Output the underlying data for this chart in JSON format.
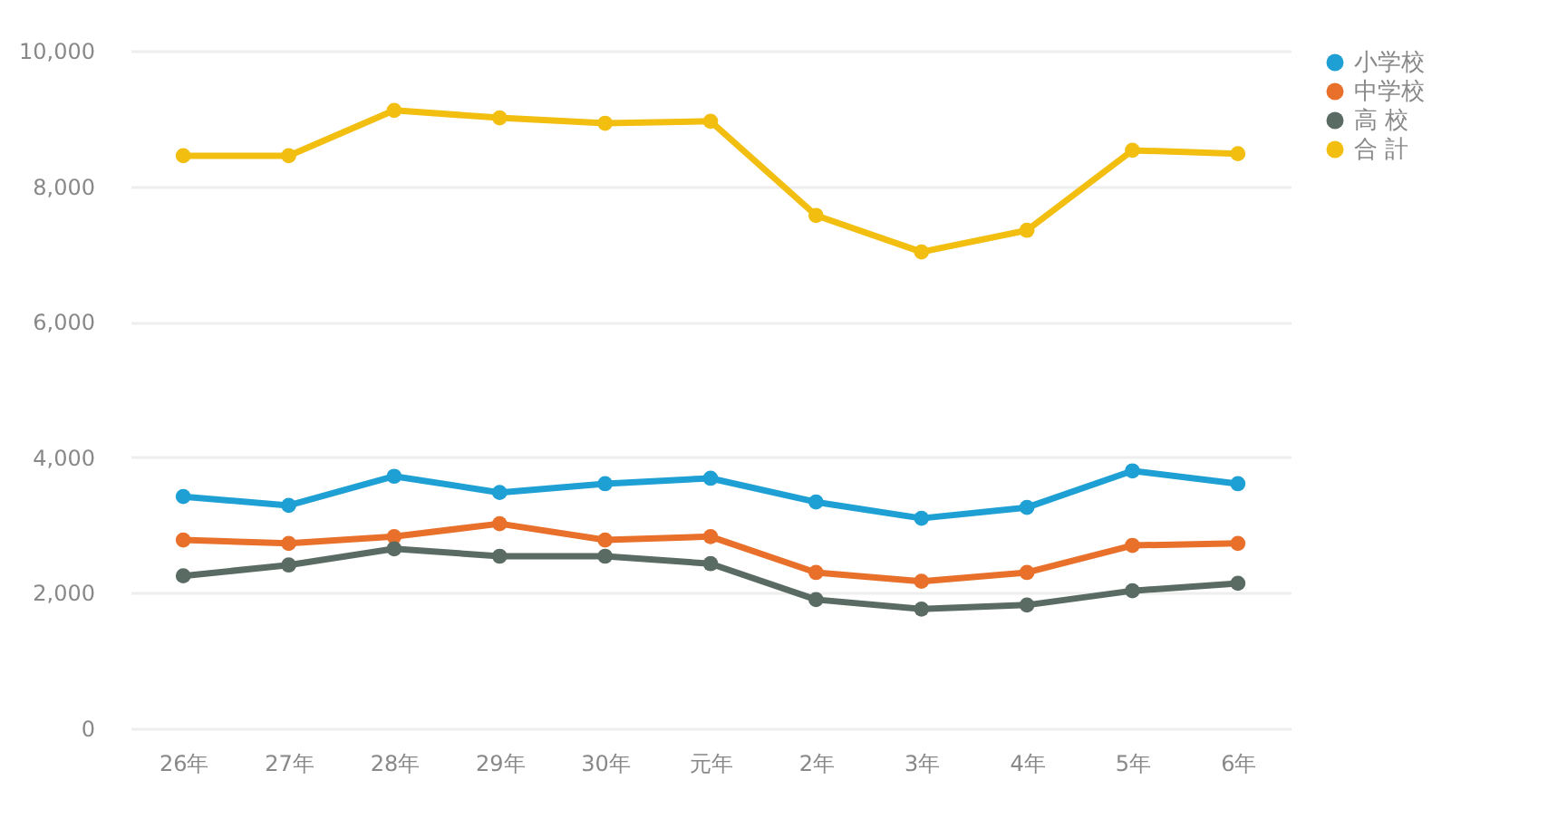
{
  "chart_data": {
    "type": "line",
    "categories": [
      "26年",
      "27年",
      "28年",
      "29年",
      "30年",
      "元年",
      "2年",
      "3年",
      "4年",
      "5年",
      "6年"
    ],
    "series": [
      {
        "name": "小学校",
        "color": "#1ea0d4",
        "values": [
          3420,
          3290,
          3720,
          3480,
          3610,
          3690,
          3340,
          3100,
          3260,
          3800,
          3610
        ]
      },
      {
        "name": "中学校",
        "color": "#e8702a",
        "values": [
          2780,
          2730,
          2830,
          3020,
          2780,
          2830,
          2300,
          2170,
          2300,
          2700,
          2730
        ]
      },
      {
        "name": "高 校",
        "color": "#5a6b64",
        "values": [
          2250,
          2410,
          2650,
          2540,
          2540,
          2430,
          1900,
          1760,
          1820,
          2030,
          2140
        ]
      },
      {
        "name": "合 計",
        "color": "#f2be0f",
        "values": [
          8450,
          8450,
          9120,
          9010,
          8930,
          8960,
          7570,
          7030,
          7350,
          8530,
          8480
        ]
      }
    ],
    "ylim": [
      0,
      10000
    ],
    "yticks": [
      {
        "value": 0,
        "label": "0"
      },
      {
        "value": 2000,
        "label": "2,000"
      },
      {
        "value": 4000,
        "label": "4,000"
      },
      {
        "value": 6000,
        "label": "6,000"
      },
      {
        "value": 8000,
        "label": "8,000"
      },
      {
        "value": 10000,
        "label": "10,000"
      }
    ],
    "grid": "y",
    "legend": "right",
    "marker": "circle",
    "line_style": "solid"
  }
}
